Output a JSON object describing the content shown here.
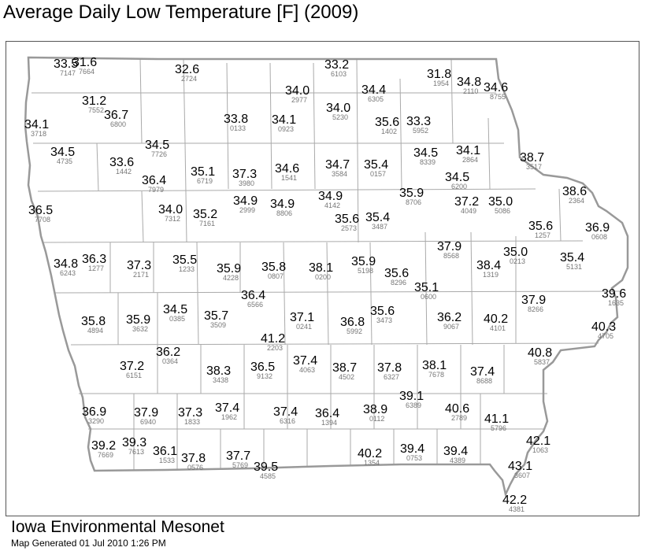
{
  "title": "Average Daily Low Temperature [F] (2009)",
  "footer": {
    "org": "Iowa Environmental Mesonet",
    "generated": "Map Generated 01 Jul 2010 1:26 PM"
  },
  "colors": {
    "state_outline": "#999999",
    "county_lines": "#aaaaaa",
    "value_text": "#000000",
    "station_text": "#777777"
  },
  "stations": [
    {
      "value": "33.5",
      "id": "7147"
    },
    {
      "value": "31.6",
      "id": "7664"
    },
    {
      "value": "32.6",
      "id": "2724"
    },
    {
      "value": "33.2",
      "id": "6103"
    },
    {
      "value": "31.8",
      "id": "1954"
    },
    {
      "value": "34.8",
      "id": "2110"
    },
    {
      "value": "34.6",
      "id": "8755"
    },
    {
      "value": "34.0",
      "id": "2977"
    },
    {
      "value": "34.4",
      "id": "6305"
    },
    {
      "value": "31.2",
      "id": "7552"
    },
    {
      "value": "36.7",
      "id": "6800"
    },
    {
      "value": "34.0",
      "id": "5230"
    },
    {
      "value": "34.1",
      "id": "3718"
    },
    {
      "value": "33.8",
      "id": "0133"
    },
    {
      "value": "34.1",
      "id": "0923"
    },
    {
      "value": "35.6",
      "id": "1402"
    },
    {
      "value": "33.3",
      "id": "5952"
    },
    {
      "value": "34.5",
      "id": "7726"
    },
    {
      "value": "34.5",
      "id": "4735"
    },
    {
      "value": "33.6",
      "id": "1442"
    },
    {
      "value": "34.5",
      "id": "8339"
    },
    {
      "value": "34.1",
      "id": "2864"
    },
    {
      "value": "38.7",
      "id": "3517"
    },
    {
      "value": "36.4",
      "id": "7979"
    },
    {
      "value": "35.1",
      "id": "6719"
    },
    {
      "value": "37.3",
      "id": "3980"
    },
    {
      "value": "34.6",
      "id": "1541"
    },
    {
      "value": "34.7",
      "id": "3584"
    },
    {
      "value": "35.4",
      "id": "0157"
    },
    {
      "value": "34.5",
      "id": "6200"
    },
    {
      "value": "38.6",
      "id": "2364"
    },
    {
      "value": "34.9",
      "id": "2999"
    },
    {
      "value": "34.9",
      "id": "8806"
    },
    {
      "value": "34.9",
      "id": "4142"
    },
    {
      "value": "35.9",
      "id": "8706"
    },
    {
      "value": "37.2",
      "id": "4049"
    },
    {
      "value": "35.0",
      "id": "5086"
    },
    {
      "value": "36.5",
      "id": "7708"
    },
    {
      "value": "34.0",
      "id": "7312"
    },
    {
      "value": "35.2",
      "id": "7161"
    },
    {
      "value": "35.6",
      "id": "2573"
    },
    {
      "value": "35.4",
      "id": "3487"
    },
    {
      "value": "35.6",
      "id": "1257"
    },
    {
      "value": "36.9",
      "id": "0608"
    },
    {
      "value": "37.9",
      "id": "8568"
    },
    {
      "value": "35.0",
      "id": "0213"
    },
    {
      "value": "35.4",
      "id": "5131"
    },
    {
      "value": "34.8",
      "id": "6243"
    },
    {
      "value": "36.3",
      "id": "1277"
    },
    {
      "value": "37.3",
      "id": "2171"
    },
    {
      "value": "35.5",
      "id": "1233"
    },
    {
      "value": "35.9",
      "id": "4228"
    },
    {
      "value": "35.8",
      "id": "0807"
    },
    {
      "value": "38.1",
      "id": "0200"
    },
    {
      "value": "35.9",
      "id": "5198"
    },
    {
      "value": "35.6",
      "id": "8296"
    },
    {
      "value": "38.4",
      "id": "1319"
    },
    {
      "value": "35.1",
      "id": "0600"
    },
    {
      "value": "36.4",
      "id": "6566"
    },
    {
      "value": "37.9",
      "id": "8266"
    },
    {
      "value": "39.6",
      "id": "1635"
    },
    {
      "value": "35.8",
      "id": "4894"
    },
    {
      "value": "35.9",
      "id": "3632"
    },
    {
      "value": "34.5",
      "id": "0385"
    },
    {
      "value": "35.7",
      "id": "3509"
    },
    {
      "value": "37.1",
      "id": "0241"
    },
    {
      "value": "36.8",
      "id": "5992"
    },
    {
      "value": "35.6",
      "id": "3473"
    },
    {
      "value": "36.2",
      "id": "9067"
    },
    {
      "value": "40.2",
      "id": "4101"
    },
    {
      "value": "40.3",
      "id": "4705"
    },
    {
      "value": "41.2",
      "id": "2203"
    },
    {
      "value": "36.2",
      "id": "0364"
    },
    {
      "value": "40.8",
      "id": "5837"
    },
    {
      "value": "37.2",
      "id": "6151"
    },
    {
      "value": "38.3",
      "id": "3438"
    },
    {
      "value": "36.5",
      "id": "9132"
    },
    {
      "value": "37.4",
      "id": "4063"
    },
    {
      "value": "38.7",
      "id": "4502"
    },
    {
      "value": "37.8",
      "id": "6327"
    },
    {
      "value": "38.1",
      "id": "7678"
    },
    {
      "value": "37.4",
      "id": "8688"
    },
    {
      "value": "39.1",
      "id": "6389"
    },
    {
      "value": "36.9",
      "id": "3290"
    },
    {
      "value": "37.9",
      "id": "6940"
    },
    {
      "value": "37.3",
      "id": "1833"
    },
    {
      "value": "37.4",
      "id": "1962"
    },
    {
      "value": "37.4",
      "id": "6316"
    },
    {
      "value": "36.4",
      "id": "1394"
    },
    {
      "value": "38.9",
      "id": "0112"
    },
    {
      "value": "40.6",
      "id": "2789"
    },
    {
      "value": "41.1",
      "id": "5796"
    },
    {
      "value": "39.2",
      "id": "7669"
    },
    {
      "value": "39.3",
      "id": "7613"
    },
    {
      "value": "36.1",
      "id": "1533"
    },
    {
      "value": "37.8",
      "id": "0576"
    },
    {
      "value": "37.7",
      "id": "5769"
    },
    {
      "value": "39.5",
      "id": "4585"
    },
    {
      "value": "40.2",
      "id": "1354"
    },
    {
      "value": "39.4",
      "id": "0753"
    },
    {
      "value": "39.4",
      "id": "4389"
    },
    {
      "value": "42.1",
      "id": "1063"
    },
    {
      "value": "43.1",
      "id": "3607"
    },
    {
      "value": "42.2",
      "id": "4381"
    }
  ]
}
